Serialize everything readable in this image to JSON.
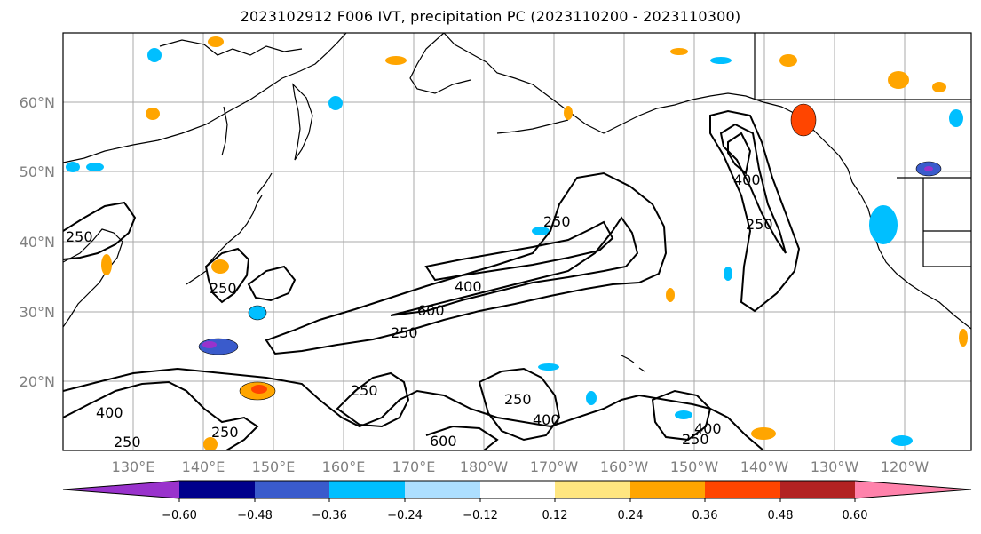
{
  "title": "2023102912 F006 IVT, precipitation PC (2023110200 - 2023110300)",
  "map": {
    "lat_labels": [
      "20°N",
      "30°N",
      "40°N",
      "50°N",
      "60°N"
    ],
    "lon_labels": [
      "130°E",
      "140°E",
      "150°E",
      "160°E",
      "170°E",
      "180°W",
      "170°W",
      "160°W",
      "150°W",
      "140°W",
      "130°W",
      "120°W"
    ],
    "contour_levels": [
      "250",
      "400",
      "600"
    ]
  },
  "colorbar": {
    "tick_labels": [
      "−0.60",
      "−0.48",
      "−0.36",
      "−0.24",
      "−0.12",
      "0.12",
      "0.24",
      "0.36",
      "0.48",
      "0.60"
    ],
    "colors": {
      "under": "#9932CC",
      "bins": [
        "#00008B",
        "#3A5BCC",
        "#00BFFF",
        "#ADDFFF",
        "#FFFFFF",
        "#FFE680",
        "#FFA500",
        "#FF4500",
        "#B22222"
      ],
      "over": "#FF82AB"
    }
  }
}
